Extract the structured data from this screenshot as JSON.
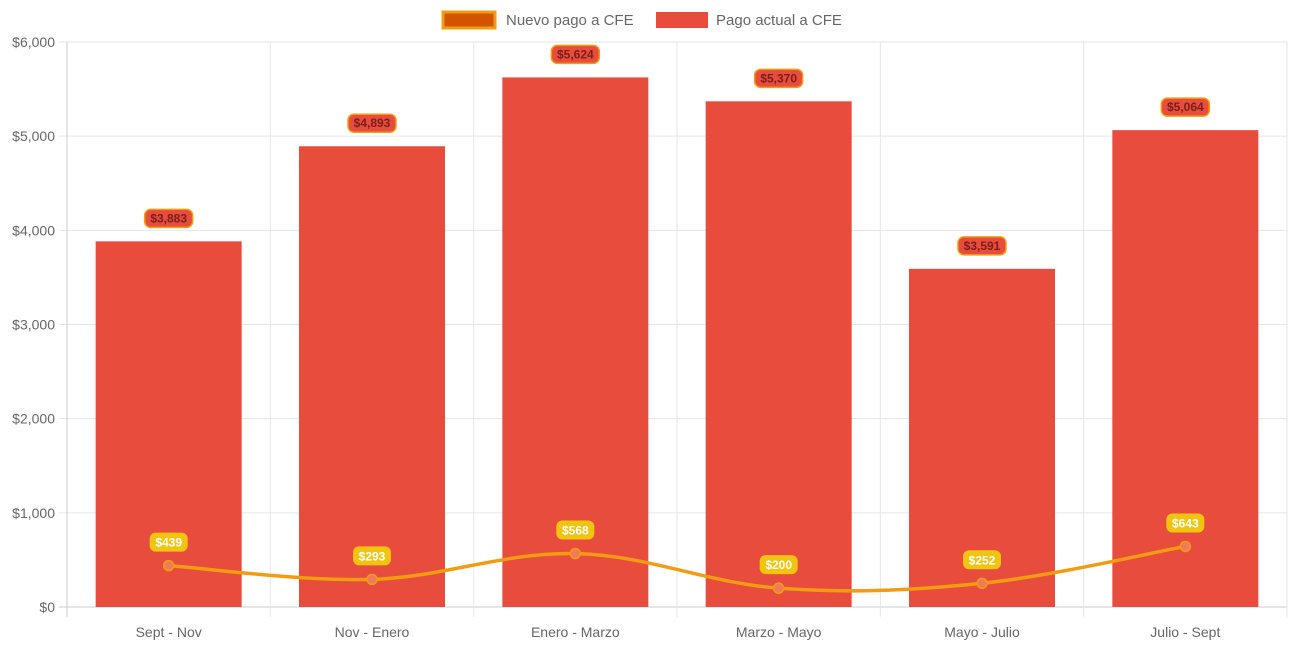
{
  "chart_data": {
    "type": "bar",
    "categories": [
      "Sept - Nov",
      "Nov - Enero",
      "Enero - Marzo",
      "Marzo - Mayo",
      "Mayo - Julio",
      "Julio - Sept"
    ],
    "series": [
      {
        "name": "Nuevo pago a CFE",
        "type": "line",
        "values": [
          439,
          293,
          568,
          200,
          252,
          643
        ],
        "labels": [
          "$439",
          "$293",
          "$568",
          "$200",
          "$252",
          "$643"
        ],
        "color": "#f39c12",
        "legend_fill": "#d35400"
      },
      {
        "name": "Pago actual a CFE",
        "type": "bar",
        "values": [
          3883,
          4893,
          5624,
          5370,
          3591,
          5064
        ],
        "labels": [
          "$3,883",
          "$4,893",
          "$5,624",
          "$5,370",
          "$3,591",
          "$5,064"
        ],
        "color": "#e74c3c"
      }
    ],
    "ylim": [
      0,
      6000
    ],
    "yticks": [
      0,
      1000,
      2000,
      3000,
      4000,
      5000,
      6000
    ],
    "ytick_labels": [
      "$0",
      "$1,000",
      "$2,000",
      "$3,000",
      "$4,000",
      "$5,000",
      "$6,000"
    ],
    "grid": true,
    "legend_position": "top-center",
    "title": "",
    "xlabel": "",
    "ylabel": ""
  }
}
